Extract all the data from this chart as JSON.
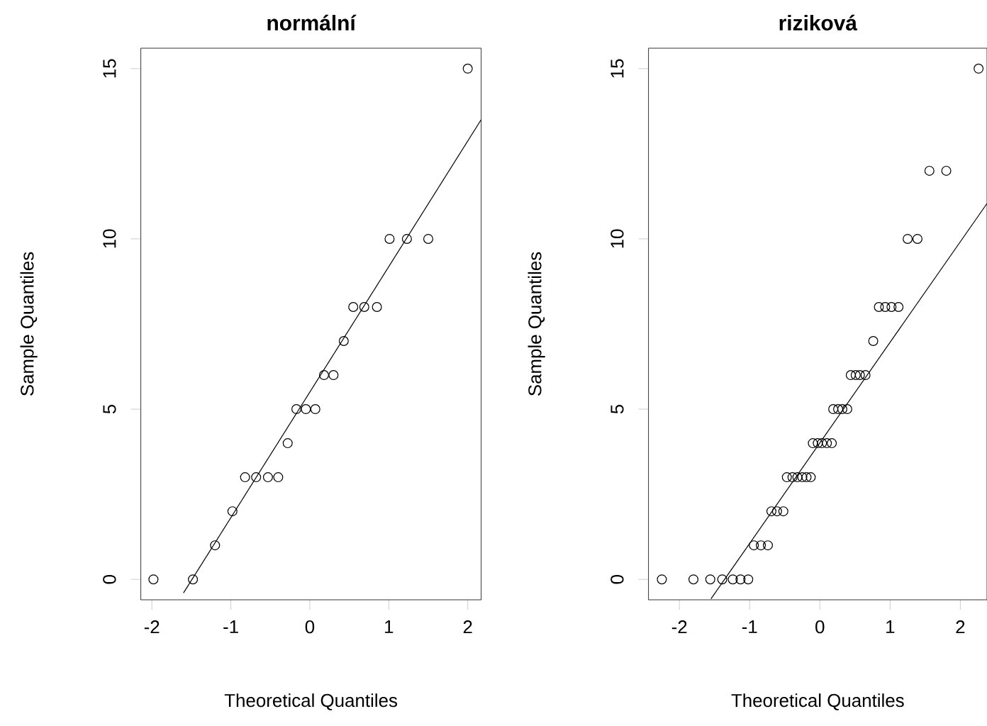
{
  "chart_data": [
    {
      "type": "scatter",
      "title": "normální",
      "xlabel": "Theoretical Quantiles",
      "ylabel": "Sample Quantiles",
      "xlim": [
        -2.14,
        2.17
      ],
      "ylim": [
        -0.6,
        15.6
      ],
      "xticks": [
        -2,
        -1,
        0,
        1,
        2
      ],
      "yticks": [
        0,
        5,
        10,
        15
      ],
      "grid": false,
      "series": [
        {
          "type": "scatter",
          "marker": "circle",
          "color": "#000000",
          "x": [
            -1.98,
            -1.48,
            -1.2,
            -0.98,
            -0.82,
            -0.68,
            -0.53,
            -0.4,
            -0.28,
            -0.17,
            -0.05,
            0.07,
            0.18,
            0.3,
            0.43,
            0.55,
            0.69,
            0.85,
            1.01,
            1.23,
            1.5,
            2.0
          ],
          "values": [
            0,
            0,
            1,
            2,
            3,
            3,
            3,
            3,
            4,
            5,
            5,
            5,
            6,
            6,
            7,
            8,
            8,
            8,
            10,
            10,
            10,
            15
          ]
        },
        {
          "type": "line",
          "marker": "none",
          "color": "#000000",
          "x": [
            -1.6,
            2.17
          ],
          "values": [
            -0.4,
            13.5
          ]
        }
      ]
    },
    {
      "type": "scatter",
      "title": "riziková",
      "xlabel": "Theoretical Quantiles",
      "ylabel": "Sample Quantiles",
      "xlim": [
        -2.44,
        2.38
      ],
      "ylim": [
        -0.6,
        15.6
      ],
      "xticks": [
        -2,
        -1,
        0,
        1,
        2
      ],
      "yticks": [
        0,
        5,
        10,
        15
      ],
      "grid": false,
      "series": [
        {
          "type": "scatter",
          "marker": "circle",
          "color": "#000000",
          "x": [
            -2.25,
            -1.8,
            -1.56,
            -1.39,
            -1.24,
            -1.13,
            -1.02,
            -0.94,
            -0.84,
            -0.74,
            -0.69,
            -0.61,
            -0.52,
            -0.47,
            -0.39,
            -0.32,
            -0.25,
            -0.19,
            -0.13,
            -0.1,
            -0.03,
            0.03,
            0.1,
            0.17,
            0.19,
            0.26,
            0.32,
            0.39,
            0.44,
            0.51,
            0.57,
            0.65,
            0.76,
            0.84,
            0.93,
            1.02,
            1.12,
            1.25,
            1.39,
            1.56,
            1.8,
            2.26
          ],
          "values": [
            0,
            0,
            0,
            0,
            0,
            0,
            0,
            1,
            1,
            1,
            2,
            2,
            2,
            3,
            3,
            3,
            3,
            3,
            3,
            4,
            4,
            4,
            4,
            4,
            5,
            5,
            5,
            5,
            6,
            6,
            6,
            6,
            7,
            8,
            8,
            8,
            8,
            10,
            10,
            12,
            12,
            15
          ]
        },
        {
          "type": "line",
          "marker": "none",
          "color": "#000000",
          "x": [
            -1.55,
            2.38
          ],
          "values": [
            -0.57,
            11.04
          ]
        }
      ]
    }
  ]
}
